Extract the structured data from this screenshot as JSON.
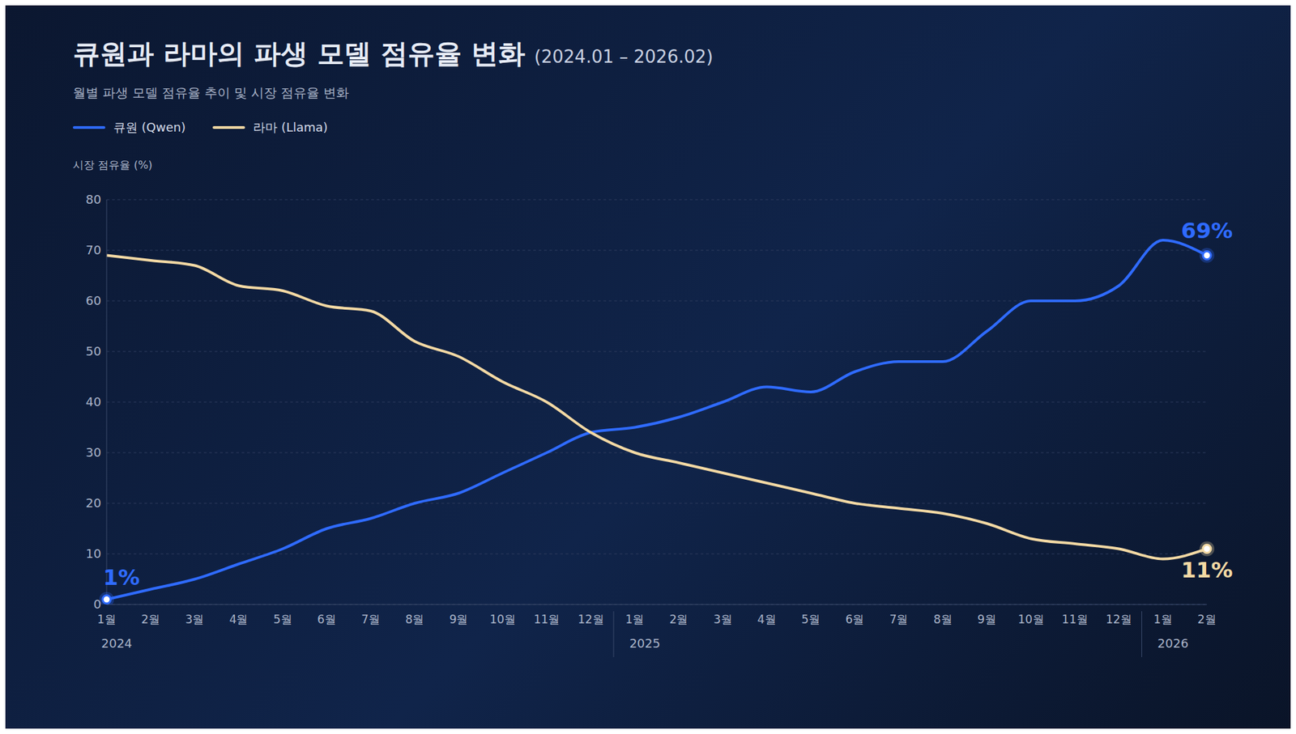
{
  "chart_data": {
    "type": "line",
    "title": "큐원과 라마의 파생 모델 점유율 변화",
    "title_suffix": "(2024.01 – 2026.02)",
    "subtitle": "월별 파생 모델 점유율 추이 및 시장 점유율 변화",
    "y_label": "시장 점유율 (%)",
    "categories": [
      "1월",
      "2월",
      "3월",
      "4월",
      "5월",
      "6월",
      "7월",
      "8월",
      "9월",
      "10월",
      "11월",
      "12월",
      "1월",
      "2월",
      "3월",
      "4월",
      "5월",
      "6월",
      "7월",
      "8월",
      "9월",
      "10월",
      "11월",
      "12월",
      "1월",
      "2월"
    ],
    "category_groups": [
      {
        "label": "2024",
        "count": 12
      },
      {
        "label": "2025",
        "count": 12
      },
      {
        "label": "2026",
        "count": 2
      }
    ],
    "series": [
      {
        "name": "큐원 (Qwen)",
        "color": "#2f6bff",
        "values": [
          1,
          3,
          5,
          8,
          11,
          15,
          17,
          20,
          22,
          26,
          30,
          34,
          35,
          37,
          40,
          43,
          42,
          46,
          48,
          48,
          54,
          60,
          60,
          63,
          72,
          69
        ]
      },
      {
        "name": "라마 (Llama)",
        "color": "#f3d9a4",
        "values": [
          69,
          68,
          67,
          63,
          62,
          59,
          58,
          52,
          49,
          44,
          40,
          34,
          30,
          28,
          26,
          24,
          22,
          20,
          19,
          18,
          16,
          13,
          12,
          11,
          9,
          11
        ]
      }
    ],
    "annotations": [
      {
        "series": "큐원 (Qwen)",
        "index": 0,
        "text": "1%"
      },
      {
        "series": "큐원 (Qwen)",
        "index": 25,
        "text": "69%"
      },
      {
        "series": "라마 (Llama)",
        "index": 25,
        "text": "11%"
      }
    ],
    "ylim": [
      0,
      80
    ],
    "yticks": [
      0,
      10,
      20,
      30,
      40,
      50,
      60,
      70,
      80
    ],
    "grid": true,
    "legend": "top left"
  }
}
